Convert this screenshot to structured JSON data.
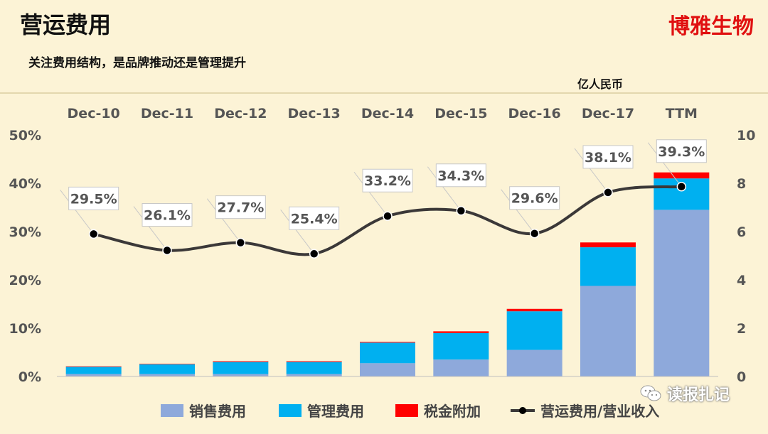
{
  "header": {
    "title": "营运费用",
    "brand": "博雅生物",
    "subtitle": "关注费用结构，是品牌推动还是管理提升",
    "unit": "亿人民币"
  },
  "watermark": {
    "text": "读报扎记",
    "icon": "wechat-icon"
  },
  "colors": {
    "sales": "#8ea9db",
    "admin": "#00b0f0",
    "tax": "#ff0000",
    "ratio": "#3b3838",
    "background": "#fcf3d6"
  },
  "chart_data": {
    "type": "bar",
    "categories": [
      "Dec-10",
      "Dec-11",
      "Dec-12",
      "Dec-13",
      "Dec-14",
      "Dec-15",
      "Dec-16",
      "Dec-17",
      "TTM"
    ],
    "series": [
      {
        "name": "销售费用",
        "kind": "stacked-bar",
        "axis": "right",
        "values": [
          0.1,
          0.1,
          0.1,
          0.1,
          0.55,
          0.7,
          1.1,
          3.75,
          6.9
        ]
      },
      {
        "name": "管理费用",
        "kind": "stacked-bar",
        "axis": "right",
        "values": [
          0.3,
          0.4,
          0.5,
          0.5,
          0.85,
          1.1,
          1.6,
          1.6,
          1.3
        ]
      },
      {
        "name": "税金附加",
        "kind": "stacked-bar",
        "axis": "right",
        "values": [
          0.02,
          0.02,
          0.03,
          0.03,
          0.03,
          0.07,
          0.1,
          0.2,
          0.25
        ]
      },
      {
        "name": "营运费用/营业收入",
        "kind": "line",
        "axis": "left",
        "values": [
          29.5,
          26.1,
          27.7,
          25.4,
          33.2,
          34.3,
          29.6,
          38.1,
          39.3
        ],
        "labels": [
          "29.5%",
          "26.1%",
          "27.7%",
          "25.4%",
          "33.2%",
          "34.3%",
          "29.6%",
          "38.1%",
          "39.3%"
        ]
      }
    ],
    "left_axis": {
      "ticks": [
        "0%",
        "10%",
        "20%",
        "30%",
        "40%",
        "50%"
      ],
      "min": 0,
      "max": 50
    },
    "right_axis": {
      "ticks": [
        "0",
        "2",
        "4",
        "6",
        "8",
        "10"
      ],
      "min": 0,
      "max": 10
    },
    "category_axis_position": "top",
    "legend": {
      "position": "bottom"
    },
    "grid": false
  }
}
